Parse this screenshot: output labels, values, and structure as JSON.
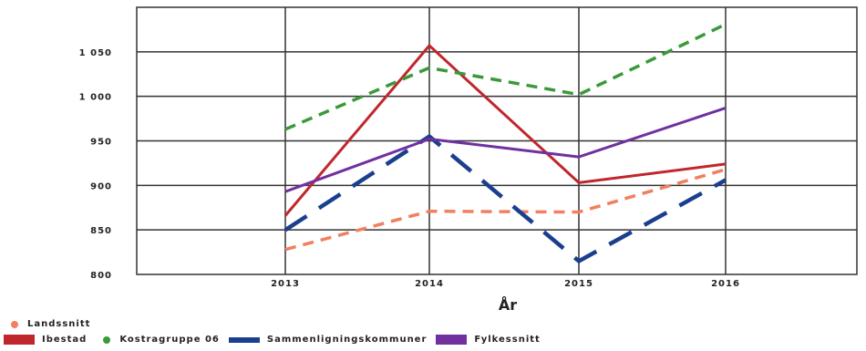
{
  "chart_data": {
    "type": "line",
    "xlabel": "År",
    "ylabel": "",
    "x": [
      "2013",
      "2014",
      "2015",
      "2016"
    ],
    "ylim": [
      800,
      1100
    ],
    "yticks": [
      800,
      850,
      900,
      950,
      1000,
      1050
    ],
    "ytick_labels": [
      "800",
      "850",
      "900",
      "950",
      "1 000",
      "1 050"
    ],
    "grid": true,
    "legend_position": "bottom-left",
    "series": [
      {
        "name": "Landssnitt",
        "values": [
          828,
          871,
          870,
          918
        ],
        "color": "#f08060",
        "style": "dashed",
        "legend_symbol": "dot"
      },
      {
        "name": "Ibestad",
        "values": [
          866,
          1057,
          903,
          924
        ],
        "color": "#c0272d",
        "style": "solid",
        "legend_symbol": "rect"
      },
      {
        "name": "Kostragruppe 06",
        "values": [
          963,
          1032,
          1002,
          1081
        ],
        "color": "#3a9a3a",
        "style": "dashed",
        "legend_symbol": "dot"
      },
      {
        "name": "Sammenligningskommuner",
        "values": [
          850,
          955,
          815,
          906
        ],
        "color": "#1a3f8f",
        "style": "longdash",
        "legend_symbol": "bar"
      },
      {
        "name": "Fylkessnitt",
        "values": [
          893,
          952,
          932,
          987
        ],
        "color": "#7030a0",
        "style": "solid",
        "legend_symbol": "rect"
      }
    ]
  }
}
